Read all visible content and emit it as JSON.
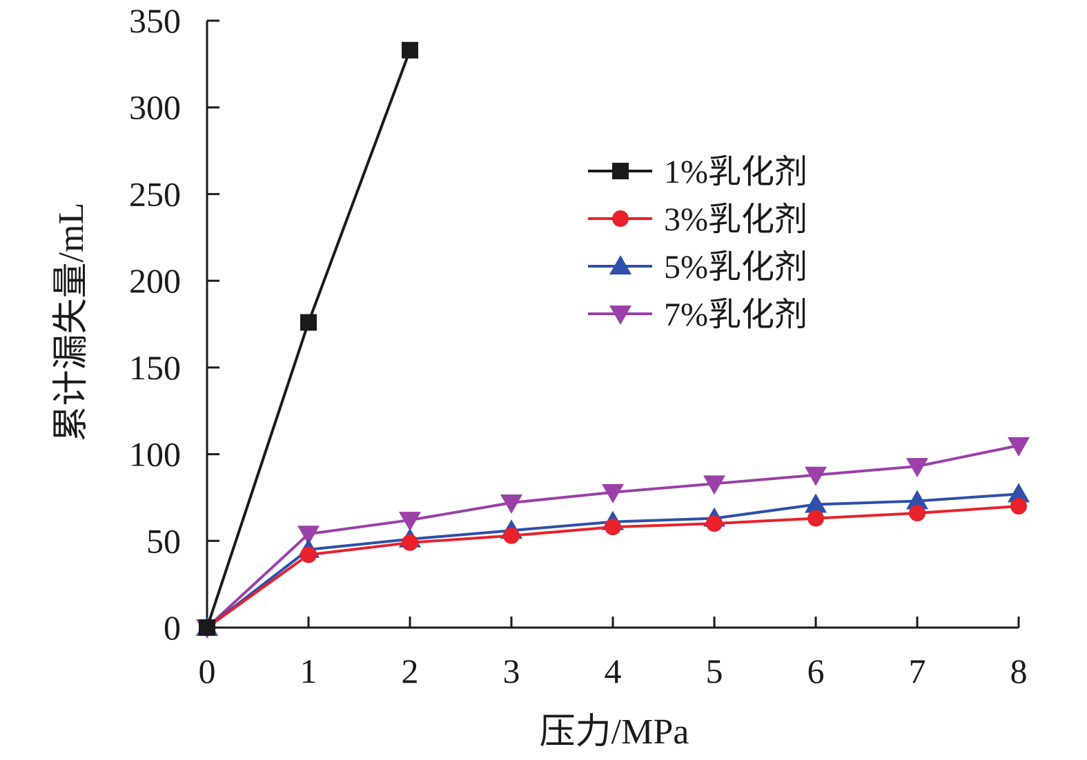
{
  "chart_data": {
    "type": "line",
    "xlabel": "压力/MPa",
    "ylabel": "累计漏失量/mL",
    "xlim": [
      0,
      8
    ],
    "ylim": [
      0,
      350
    ],
    "xticks": [
      0,
      1,
      2,
      3,
      4,
      5,
      6,
      7,
      8
    ],
    "yticks": [
      0,
      50,
      100,
      150,
      200,
      250,
      300,
      350
    ],
    "grid": false,
    "legend_position": "top-right",
    "series": [
      {
        "name": "1%乳化剂",
        "color": "#1a1a1a",
        "marker": "square",
        "x": [
          0,
          1,
          2
        ],
        "values": [
          0,
          176,
          333
        ]
      },
      {
        "name": "3%乳化剂",
        "color": "#e8212b",
        "marker": "circle",
        "x": [
          0,
          1,
          2,
          3,
          4,
          5,
          6,
          7,
          8
        ],
        "values": [
          0,
          42,
          49,
          53,
          58,
          60,
          63,
          66,
          70
        ]
      },
      {
        "name": "5%乳化剂",
        "color": "#2e4faa",
        "marker": "triangle-up",
        "x": [
          0,
          1,
          2,
          3,
          4,
          5,
          6,
          7,
          8
        ],
        "values": [
          0,
          45,
          51,
          56,
          61,
          63,
          71,
          73,
          77
        ]
      },
      {
        "name": "7%乳化剂",
        "color": "#9b40a8",
        "marker": "triangle-down",
        "x": [
          0,
          1,
          2,
          3,
          4,
          5,
          6,
          7,
          8
        ],
        "values": [
          0,
          54,
          62,
          72,
          78,
          83,
          88,
          93,
          105
        ]
      }
    ]
  }
}
